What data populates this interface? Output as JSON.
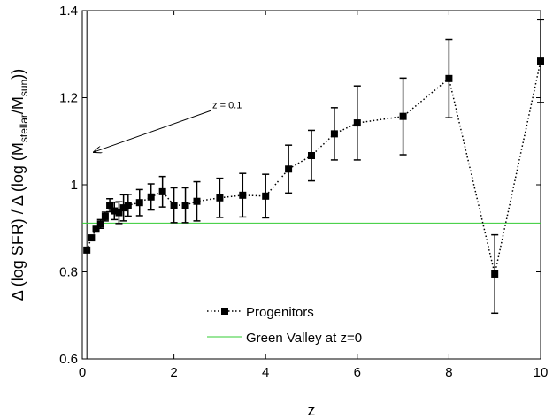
{
  "chart_data": {
    "type": "line",
    "title": "",
    "xlabel": "z",
    "ylabel_parts": {
      "delta": "Δ",
      "sfr": "(log SFR) / ",
      "delta2": "Δ",
      "mass_open": " (log (M",
      "stellar_sub": "stellar",
      "slash": "/M",
      "sun_sub": "sun",
      "close": "))"
    },
    "xlim": [
      0,
      10
    ],
    "ylim": [
      0.6,
      1.4
    ],
    "x_ticks": [
      0,
      2,
      4,
      6,
      8,
      10
    ],
    "x_tick_labels": [
      "0",
      "2",
      "4",
      "6",
      "8",
      "10"
    ],
    "y_ticks": [
      0.6,
      0.8,
      1.0,
      1.2,
      1.4
    ],
    "y_tick_labels": [
      "0.6",
      "0.8",
      "1",
      "1.2",
      "1.4"
    ],
    "grid": false,
    "legend_position": "bottom-center",
    "series": [
      {
        "name": "Progenitors",
        "style": "dotted-line-square-markers",
        "color": "#000000",
        "x": [
          0.1,
          0.2,
          0.3,
          0.4,
          0.5,
          0.6,
          0.7,
          0.8,
          0.9,
          1.0,
          1.25,
          1.5,
          1.75,
          2.0,
          2.25,
          2.5,
          3.0,
          3.5,
          4.0,
          4.5,
          5.0,
          5.5,
          6.0,
          7.0,
          8.0,
          9.0,
          10.0
        ],
        "y": [
          0.85,
          0.878,
          0.898,
          0.91,
          0.927,
          0.953,
          0.94,
          0.936,
          0.947,
          0.953,
          0.959,
          0.972,
          0.984,
          0.953,
          0.953,
          0.962,
          0.97,
          0.976,
          0.974,
          1.036,
          1.067,
          1.117,
          1.142,
          1.157,
          1.244,
          0.795,
          1.284
        ],
        "err": [
          0.0,
          0.0,
          0.0,
          0.01,
          0.01,
          0.015,
          0.02,
          0.025,
          0.03,
          0.025,
          0.03,
          0.03,
          0.035,
          0.04,
          0.04,
          0.045,
          0.045,
          0.05,
          0.05,
          0.055,
          0.058,
          0.06,
          0.085,
          0.088,
          0.09,
          0.09,
          0.095
        ]
      },
      {
        "name": "Green Valley at z=0",
        "style": "solid-line",
        "color": "#33cc33",
        "x": [
          0,
          10
        ],
        "y": [
          0.912,
          0.912
        ]
      }
    ],
    "annotations": [
      {
        "text": "z = 0.1",
        "arrow_from": [
          2.8,
          1.17
        ],
        "arrow_to": [
          0.25,
          1.075
        ],
        "vertical_line_x": 0.1
      }
    ]
  }
}
